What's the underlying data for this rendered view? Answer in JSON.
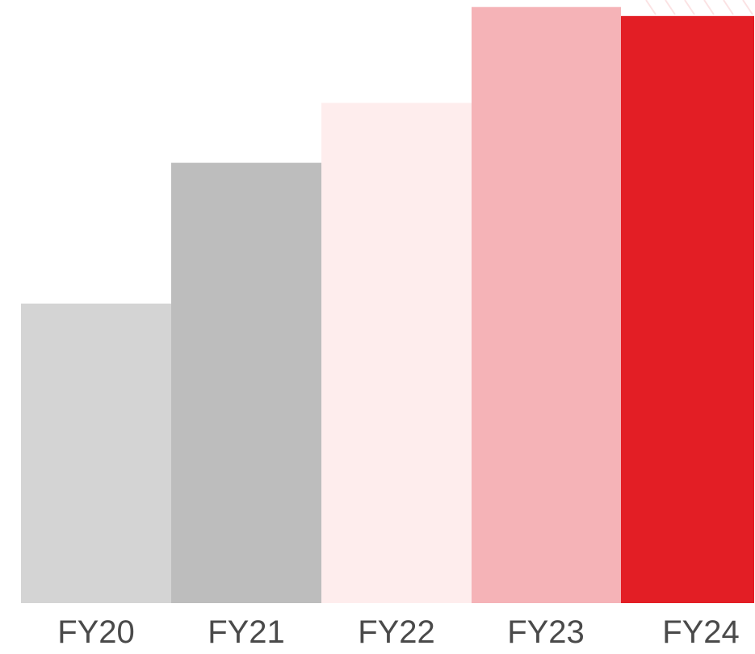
{
  "chart_data": {
    "type": "bar",
    "title": "",
    "xlabel": "",
    "ylabel": "",
    "categories": [
      "FY20",
      "FY21",
      "FY22",
      "FY23",
      "FY24"
    ],
    "values": [
      100,
      147,
      167,
      199,
      196
    ],
    "colors": [
      "#d4d4d4",
      "#bdbdbd",
      "#feeded",
      "#f5b3b7",
      "#e31e25"
    ],
    "ylim": [
      0,
      200
    ],
    "grid": false,
    "legend": "none"
  }
}
